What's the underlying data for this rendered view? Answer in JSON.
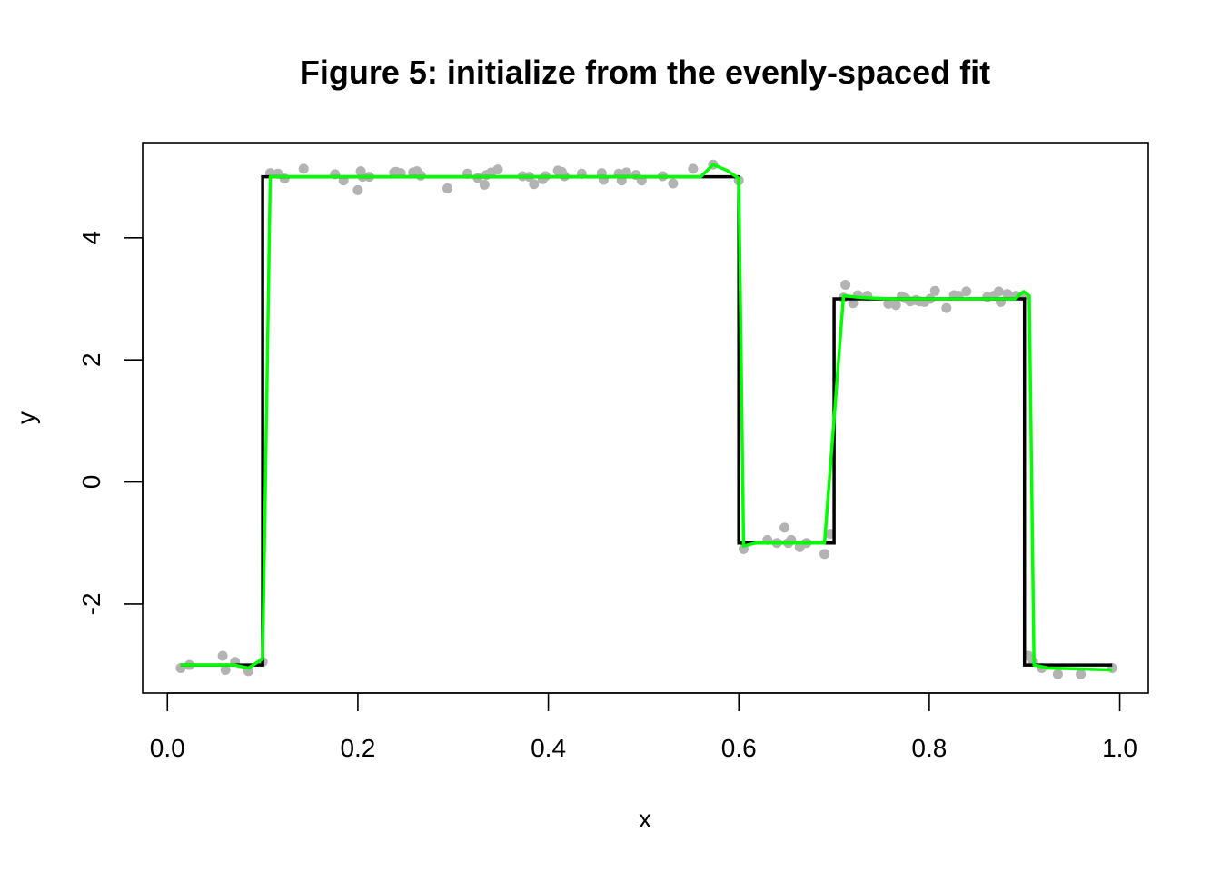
{
  "chart_data": {
    "type": "scatter",
    "title": "Figure 5: initialize from the evenly-spaced fit",
    "xlabel": "x",
    "ylabel": "y",
    "xlim": [
      -0.026,
      1.03
    ],
    "ylim": [
      -3.46,
      5.56
    ],
    "grid": false,
    "x_ticks": [
      0.0,
      0.2,
      0.4,
      0.6,
      0.8,
      1.0
    ],
    "x_tick_labels": [
      "0.0",
      "0.2",
      "0.4",
      "0.6",
      "0.8",
      "1.0"
    ],
    "y_ticks": [
      -2,
      0,
      2,
      4
    ],
    "y_tick_labels": [
      "-2",
      "0",
      "2",
      "4"
    ],
    "colors": {
      "points": "#b3b3b3",
      "true_function": "#000000",
      "fitted_curve": "#00ff00",
      "frame": "#000000"
    },
    "series": [
      {
        "kind": "points",
        "x": [
          0.014,
          0.023,
          0.058,
          0.061,
          0.071,
          0.085,
          0.1,
          0.108,
          0.116,
          0.123,
          0.143,
          0.176,
          0.185,
          0.2,
          0.203,
          0.205,
          0.212,
          0.238,
          0.24,
          0.245,
          0.258,
          0.262,
          0.266,
          0.294,
          0.315,
          0.326,
          0.333,
          0.335,
          0.34,
          0.347,
          0.373,
          0.38,
          0.385,
          0.394,
          0.397,
          0.41,
          0.414,
          0.417,
          0.435,
          0.456,
          0.458,
          0.474,
          0.477,
          0.482,
          0.492,
          0.498,
          0.52,
          0.531,
          0.552,
          0.573,
          0.6,
          0.605,
          0.63,
          0.64,
          0.648,
          0.652,
          0.655,
          0.664,
          0.671,
          0.69,
          0.696,
          0.712,
          0.71,
          0.72,
          0.725,
          0.735,
          0.757,
          0.765,
          0.771,
          0.775,
          0.78,
          0.786,
          0.79,
          0.795,
          0.801,
          0.806,
          0.818,
          0.826,
          0.831,
          0.839,
          0.861,
          0.868,
          0.873,
          0.875,
          0.882,
          0.891,
          0.899,
          0.904,
          0.909,
          0.918,
          0.935,
          0.959,
          0.992
        ],
        "y": [
          -3.05,
          -3.0,
          -2.85,
          -3.08,
          -2.95,
          -3.1,
          -2.95,
          5.06,
          5.05,
          4.97,
          5.13,
          5.04,
          4.94,
          4.78,
          5.09,
          5.0,
          5.0,
          5.07,
          5.08,
          5.06,
          5.07,
          5.09,
          5.02,
          4.81,
          5.05,
          4.98,
          4.87,
          5.03,
          5.07,
          5.12,
          5.01,
          5.0,
          4.88,
          4.96,
          5.01,
          5.1,
          5.08,
          5.01,
          5.05,
          5.06,
          4.95,
          5.05,
          4.94,
          5.07,
          5.03,
          4.94,
          5.01,
          4.89,
          5.13,
          5.2,
          4.94,
          -1.1,
          -0.95,
          -1.0,
          -0.75,
          -1.0,
          -0.95,
          -1.07,
          -1.0,
          -1.18,
          -0.85,
          3.23,
          3.02,
          2.93,
          3.06,
          3.05,
          2.92,
          2.9,
          3.04,
          3.01,
          2.96,
          2.98,
          2.96,
          2.95,
          3.0,
          3.13,
          2.85,
          3.06,
          3.05,
          3.12,
          3.03,
          3.05,
          3.12,
          2.95,
          3.08,
          3.05,
          3.05,
          -2.85,
          -2.95,
          -3.05,
          -3.15,
          -3.15,
          -3.05
        ]
      },
      {
        "kind": "true-function",
        "x": [
          0.014,
          0.1,
          0.1,
          0.6,
          0.6,
          0.7,
          0.7,
          0.9,
          0.9,
          0.992
        ],
        "y": [
          -3,
          -3,
          5,
          5,
          -1,
          -1,
          3,
          3,
          -3,
          -3
        ]
      },
      {
        "kind": "fitted-curve",
        "x": [
          0.014,
          0.07,
          0.085,
          0.1,
          0.108,
          0.56,
          0.573,
          0.588,
          0.6,
          0.605,
          0.618,
          0.69,
          0.71,
          0.73,
          0.76,
          0.89,
          0.899,
          0.905,
          0.91,
          0.925,
          0.992
        ],
        "y": [
          -3.0,
          -3.0,
          -3.05,
          -2.9,
          5.0,
          5.0,
          5.2,
          5.1,
          4.97,
          -1.05,
          -1.0,
          -1.0,
          3.05,
          3.02,
          3.0,
          3.0,
          3.12,
          3.05,
          -3.0,
          -3.05,
          -3.08
        ]
      }
    ]
  }
}
